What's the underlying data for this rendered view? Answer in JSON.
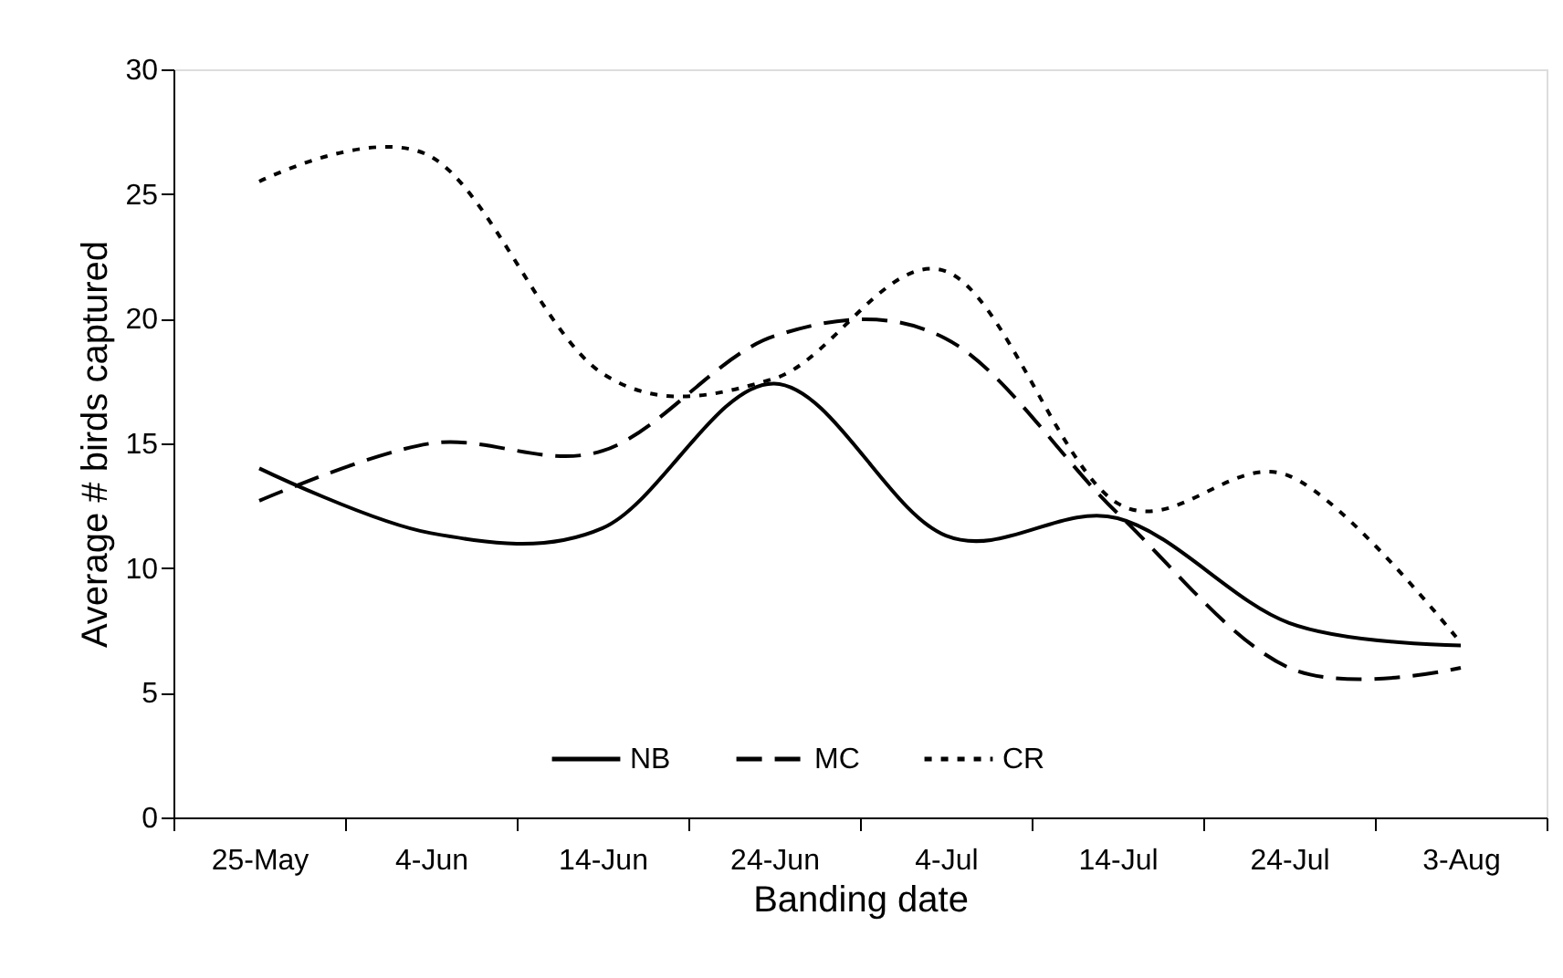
{
  "chart_data": {
    "type": "line",
    "xlabel": "Banding date",
    "ylabel": "Average # birds captured",
    "categories": [
      "25-May",
      "4-Jun",
      "14-Jun",
      "24-Jun",
      "4-Jul",
      "14-Jul",
      "24-Jul",
      "3-Aug"
    ],
    "ylim": [
      0,
      30
    ],
    "yticks": [
      0,
      5,
      10,
      15,
      20,
      25,
      30
    ],
    "grid": false,
    "legend": "bottom",
    "series": [
      {
        "name": "NB",
        "color": "#000000",
        "line_style": "solid",
        "values": [
          14.0,
          11.4,
          11.6,
          17.4,
          11.3,
          12.0,
          7.8,
          6.9
        ]
      },
      {
        "name": "MC",
        "color": "#000000",
        "line_style": "dashed",
        "values": [
          12.7,
          15.0,
          14.7,
          19.3,
          19.2,
          12.2,
          6.0,
          6.0
        ]
      },
      {
        "name": "CR",
        "color": "#000000",
        "line_style": "dotted",
        "values": [
          25.5,
          26.5,
          17.8,
          17.6,
          21.9,
          12.6,
          13.7,
          7.0
        ]
      }
    ]
  }
}
